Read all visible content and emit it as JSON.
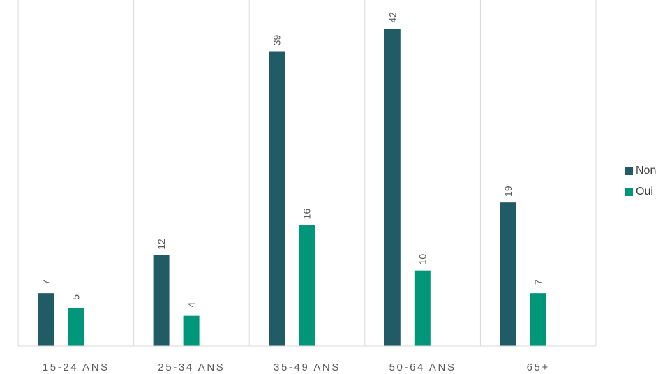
{
  "chart_data": {
    "type": "bar",
    "categories": [
      "15-24 ANS",
      "25-34 ANS",
      "35-49 ANS",
      "50-64 ANS",
      "65+"
    ],
    "series": [
      {
        "name": "Non",
        "color": "#215c66",
        "values": [
          7,
          12,
          39,
          42,
          19
        ]
      },
      {
        "name": "Oui",
        "color": "#00967a",
        "values": [
          5,
          4,
          16,
          10,
          7
        ]
      }
    ],
    "ylim": [
      0,
      42
    ],
    "grid": "vertical category separators",
    "data_labels": "rotated, above bars",
    "legend_position": "right"
  }
}
